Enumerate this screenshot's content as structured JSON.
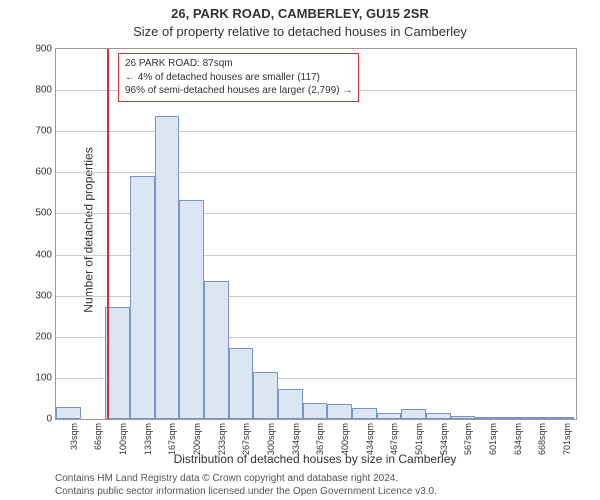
{
  "titles": {
    "line1": "26, PARK ROAD, CAMBERLEY, GU15 2SR",
    "line2": "Size of property relative to detached houses in Camberley"
  },
  "axes": {
    "ylabel": "Number of detached properties",
    "xlabel": "Distribution of detached houses by size in Camberley",
    "ylim": [
      0,
      900
    ],
    "ytick_step": 100,
    "xlim": [
      16,
      720
    ],
    "xtick_start": 33,
    "xtick_step": 33.4,
    "xtick_count": 21,
    "xtick_suffix": "sqm",
    "grid_color": "#cccccc"
  },
  "chart": {
    "type": "histogram",
    "bin_start": 16,
    "bin_width": 33.4,
    "bar_fill": "#dce5f4",
    "bar_border": "#7a93c9",
    "values": [
      30,
      0,
      272,
      590,
      738,
      532,
      335,
      172,
      115,
      72,
      40,
      36,
      28,
      15,
      24,
      15,
      8,
      4,
      4,
      4,
      2
    ]
  },
  "marker": {
    "x_value": 87,
    "color": "#cc3333"
  },
  "annotation": {
    "border_color": "#cc3333",
    "lines": [
      "26 PARK ROAD: 87sqm",
      "← 4% of detached houses are smaller (117)",
      "96% of semi-detached houses are larger (2,799) →"
    ]
  },
  "credits": {
    "line1": "Contains HM Land Registry data © Crown copyright and database right 2024.",
    "line2": "Contains public sector information licensed under the Open Government Licence v3.0."
  }
}
